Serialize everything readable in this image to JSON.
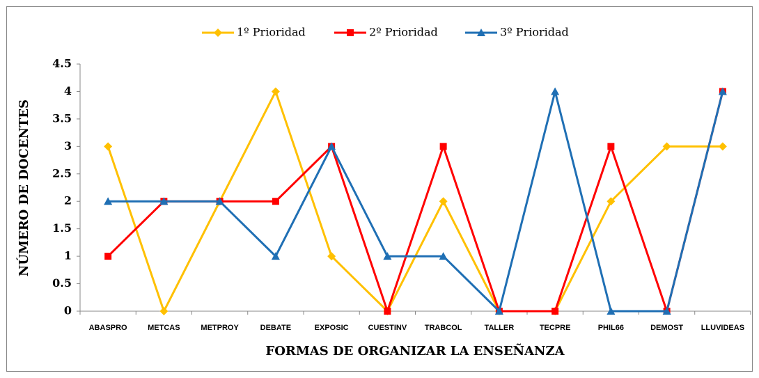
{
  "chart_data": {
    "type": "line",
    "xlabel": "FORMAS DE ORGANIZAR LA ENSEÑANZA",
    "ylabel": "NÚMERO DE DOCENTES",
    "categories": [
      "ABASPRO",
      "METCAS",
      "METPROY",
      "DEBATE",
      "EXPOSIC",
      "CUESTINV",
      "TRABCOL",
      "TALLER",
      "TECPRE",
      "PHIL66",
      "DEMOST",
      "LLUVIDEAS"
    ],
    "series": [
      {
        "name": "1º Prioridad",
        "color": "#ffc000",
        "marker": "diamond",
        "values": [
          3,
          0,
          2,
          4,
          1,
          0,
          2,
          0,
          0,
          2,
          3,
          3
        ]
      },
      {
        "name": "2º Prioridad",
        "color": "#ff0000",
        "marker": "square",
        "values": [
          1,
          2,
          2,
          2,
          3,
          0,
          3,
          0,
          0,
          3,
          0,
          4
        ]
      },
      {
        "name": "3º Prioridad",
        "color": "#1f6fb4",
        "marker": "triangle",
        "values": [
          2,
          2,
          2,
          1,
          3,
          1,
          1,
          0,
          4,
          0,
          0,
          4
        ]
      }
    ],
    "ylim": [
      0,
      4.5
    ],
    "yticks": [
      0,
      0.5,
      1,
      1.5,
      2,
      2.5,
      3,
      3.5,
      4,
      4.5
    ],
    "legend": "top",
    "grid": false
  }
}
